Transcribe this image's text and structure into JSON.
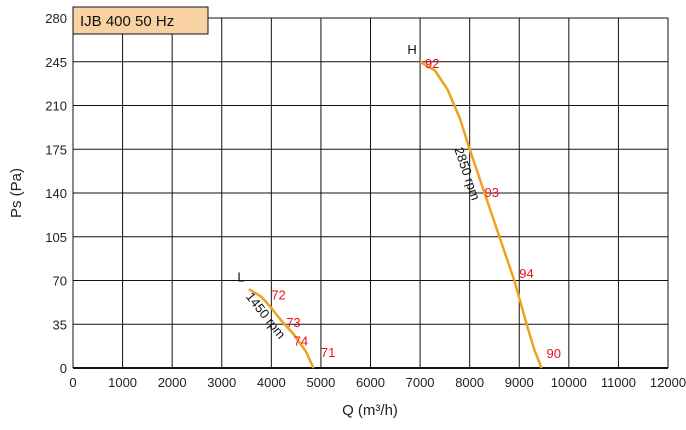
{
  "chart_data": {
    "type": "line",
    "title": "IJB 400 50 Hz",
    "xlabel": "Q (m³/h)",
    "ylabel": "Ps (Pa)",
    "xlim": [
      0,
      12000
    ],
    "ylim": [
      0,
      280
    ],
    "x_ticks": [
      0,
      1000,
      2000,
      3000,
      4000,
      5000,
      6000,
      7000,
      8000,
      9000,
      10000,
      11000,
      12000
    ],
    "y_ticks": [
      0,
      35,
      70,
      105,
      140,
      175,
      210,
      245,
      280
    ],
    "grid": true,
    "colors": {
      "curve": "#f0a21e",
      "efficiency": "#e8101a",
      "title_bg": "#f8d2a2",
      "grid": "#111111"
    },
    "series": [
      {
        "label": "L",
        "speed": "1450 rpm",
        "points": [
          [
            3550,
            63
          ],
          [
            3800,
            57
          ],
          [
            4000,
            48
          ],
          [
            4200,
            38
          ],
          [
            4450,
            27
          ],
          [
            4700,
            13
          ],
          [
            4850,
            0
          ]
        ],
        "efficiency": [
          {
            "value": "72",
            "x": 4000,
            "y": 55
          },
          {
            "value": "73",
            "x": 4300,
            "y": 33
          },
          {
            "value": "74",
            "x": 4450,
            "y": 18
          },
          {
            "value": "71",
            "x": 5000,
            "y": 9
          }
        ]
      },
      {
        "label": "H",
        "speed": "2850 rpm",
        "points": [
          [
            7000,
            245
          ],
          [
            7300,
            238
          ],
          [
            7550,
            223
          ],
          [
            7800,
            200
          ],
          [
            8000,
            175
          ],
          [
            8300,
            140
          ],
          [
            8600,
            105
          ],
          [
            8900,
            70
          ],
          [
            9150,
            35
          ],
          [
            9300,
            15
          ],
          [
            9450,
            0
          ]
        ],
        "efficiency": [
          {
            "value": "92",
            "x": 7100,
            "y": 240
          },
          {
            "value": "93",
            "x": 8300,
            "y": 137
          },
          {
            "value": "94",
            "x": 9000,
            "y": 72
          },
          {
            "value": "90",
            "x": 9550,
            "y": 8
          }
        ]
      }
    ]
  }
}
